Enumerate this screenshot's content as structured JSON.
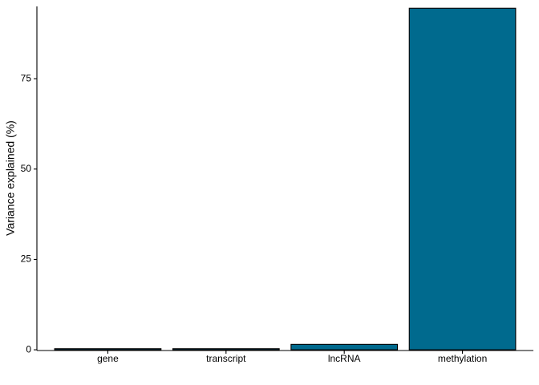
{
  "chart_data": {
    "type": "bar",
    "y_label": "Variance explained (%)",
    "categories": [
      "gene",
      "transcript",
      "lncRNA",
      "methylation"
    ],
    "values": [
      0.3,
      0.3,
      1.5,
      94.5
    ],
    "color": "#006a8e",
    "ylim": [
      -0.2,
      95
    ],
    "yticks": [
      0,
      25,
      50,
      75
    ],
    "grid": false
  }
}
